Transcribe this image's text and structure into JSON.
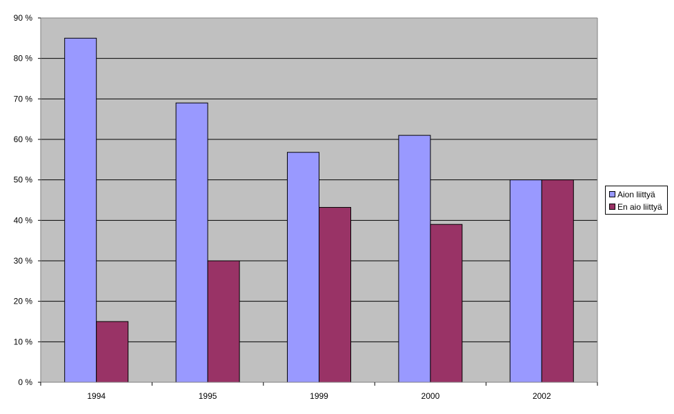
{
  "chart_data": {
    "type": "bar",
    "title": "",
    "xlabel": "",
    "ylabel": "",
    "categories": [
      "1994",
      "1995",
      "1999",
      "2000",
      "2002"
    ],
    "series": [
      {
        "name": "Aion liittyä",
        "values": [
          85,
          69,
          56.8,
          61,
          50
        ],
        "color": "#9999ff"
      },
      {
        "name": "En aio liittyä",
        "values": [
          15,
          30,
          43.2,
          39,
          50
        ],
        "color": "#993366"
      }
    ],
    "ylim": [
      0,
      90
    ],
    "yticks": [
      0,
      10,
      20,
      30,
      40,
      50,
      60,
      70,
      80,
      90
    ],
    "ytick_labels": [
      "0 %",
      "10 %",
      "20 %",
      "30 %",
      "40 %",
      "50 %",
      "60 %",
      "70 %",
      "80 %",
      "90 %"
    ],
    "grid": true,
    "plot_background": "#c0c0c0",
    "legend_position": "right"
  }
}
